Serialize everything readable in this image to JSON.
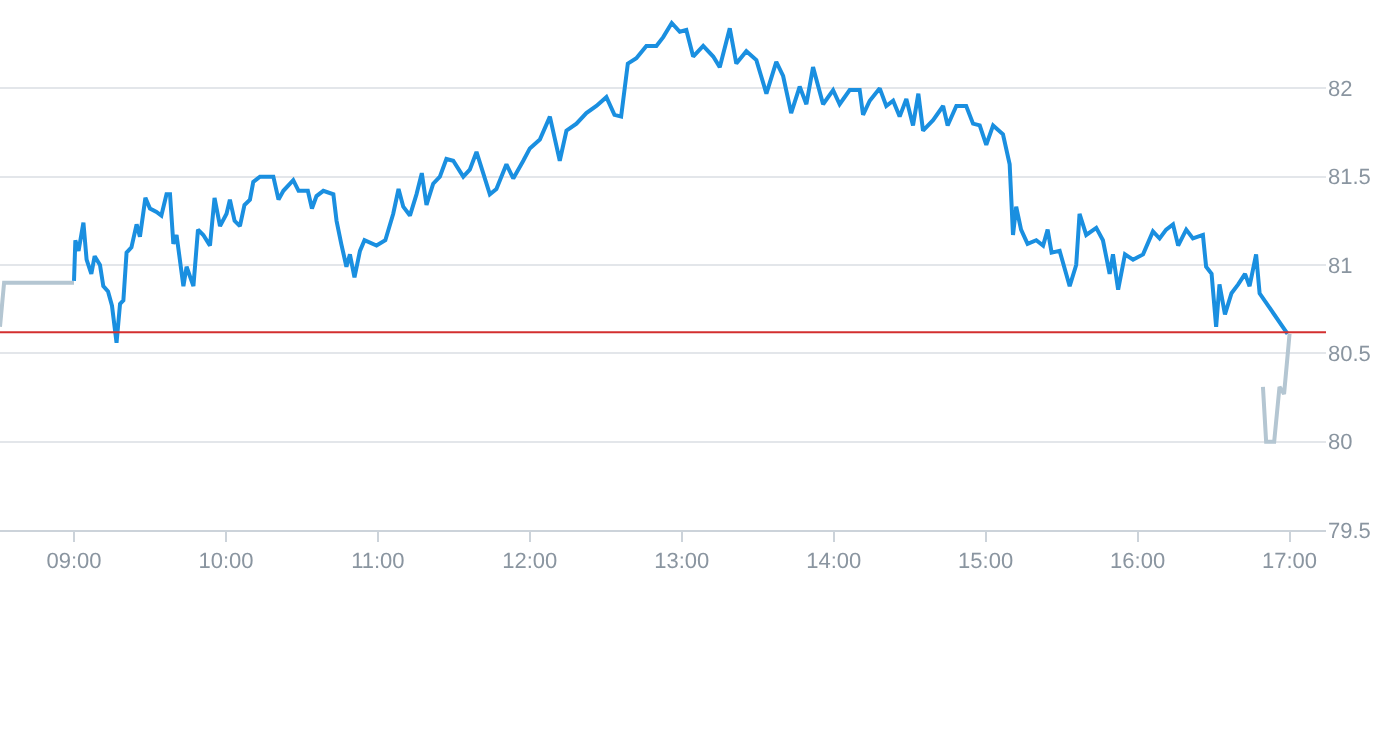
{
  "chart_data": {
    "type": "line",
    "xlim": [
      8.513,
      17.24
    ],
    "ylim": [
      79.5,
      82.5
    ],
    "xticks": [
      {
        "value": 9,
        "label": "09:00"
      },
      {
        "value": 10,
        "label": "10:00"
      },
      {
        "value": 11,
        "label": "11:00"
      },
      {
        "value": 12,
        "label": "12:00"
      },
      {
        "value": 13,
        "label": "13:00"
      },
      {
        "value": 14,
        "label": "14:00"
      },
      {
        "value": 15,
        "label": "15:00"
      },
      {
        "value": 16,
        "label": "16:00"
      },
      {
        "value": 17,
        "label": "17:00"
      }
    ],
    "yticks": [
      79.5,
      80,
      80.5,
      81,
      81.5,
      82
    ],
    "grid": "y",
    "marker": "none",
    "line_style": "solid",
    "ref_lines": [
      {
        "axis": "y",
        "value": 80.62,
        "label": null,
        "color": "#d32f2f"
      }
    ],
    "series": [
      {
        "color": "#b4c6d2",
        "x": [
          8.513,
          8.54,
          9.0
        ],
        "values": [
          80.65,
          80.9,
          80.9
        ]
      },
      {
        "color": "#1a8fe0",
        "x": [
          9.0,
          9.009,
          9.03,
          9.062,
          9.083,
          9.114,
          9.136,
          9.171,
          9.193,
          9.224,
          9.25,
          9.28,
          9.303,
          9.325,
          9.346,
          9.378,
          9.412,
          9.434,
          9.47,
          9.5,
          9.543,
          9.575,
          9.609,
          9.632,
          9.654,
          9.675,
          9.72,
          9.741,
          9.786,
          9.816,
          9.851,
          9.895,
          9.925,
          9.961,
          10.004,
          10.026,
          10.057,
          10.092,
          10.122,
          10.158,
          10.18,
          10.224,
          10.267,
          10.312,
          10.346,
          10.378,
          10.443,
          10.478,
          10.539,
          10.566,
          10.596,
          10.641,
          10.707,
          10.728,
          10.759,
          10.793,
          10.816,
          10.846,
          10.882,
          10.912,
          10.991,
          11.049,
          11.101,
          11.136,
          11.167,
          11.211,
          11.254,
          11.289,
          11.32,
          11.364,
          11.408,
          11.451,
          11.496,
          11.562,
          11.605,
          11.649,
          11.737,
          11.78,
          11.846,
          11.891,
          11.957,
          12.0,
          12.066,
          12.132,
          12.197,
          12.241,
          12.307,
          12.372,
          12.438,
          12.504,
          12.557,
          12.601,
          12.645,
          12.701,
          12.767,
          12.833,
          12.878,
          12.934,
          12.987,
          13.03,
          13.075,
          13.141,
          13.207,
          13.25,
          13.316,
          13.359,
          13.425,
          13.491,
          13.557,
          13.622,
          13.667,
          13.72,
          13.776,
          13.82,
          13.864,
          13.93,
          13.996,
          14.039,
          14.105,
          14.171,
          14.193,
          14.237,
          14.303,
          14.346,
          14.391,
          14.434,
          14.478,
          14.522,
          14.557,
          14.588,
          14.654,
          14.72,
          14.75,
          14.807,
          14.872,
          14.917,
          14.961,
          15.004,
          15.049,
          15.114,
          15.158,
          15.18,
          15.201,
          15.233,
          15.276,
          15.333,
          15.378,
          15.408,
          15.434,
          15.487,
          15.553,
          15.596,
          15.618,
          15.662,
          15.728,
          15.772,
          15.816,
          15.838,
          15.872,
          15.917,
          15.97,
          16.036,
          16.101,
          16.145,
          16.188,
          16.233,
          16.267,
          16.32,
          16.364,
          16.43,
          16.451,
          16.487,
          16.517,
          16.539,
          16.575,
          16.618,
          16.662,
          16.707,
          16.737,
          16.78,
          16.803,
          16.987
        ],
        "values": [
          80.91,
          81.14,
          81.08,
          81.24,
          81.03,
          80.95,
          81.05,
          81.0,
          80.88,
          80.85,
          80.77,
          80.56,
          80.78,
          80.8,
          81.07,
          81.1,
          81.23,
          81.16,
          81.38,
          81.32,
          81.3,
          81.28,
          81.4,
          81.4,
          81.12,
          81.17,
          80.88,
          80.99,
          80.88,
          81.2,
          81.17,
          81.11,
          81.38,
          81.22,
          81.29,
          81.37,
          81.25,
          81.22,
          81.34,
          81.37,
          81.47,
          81.5,
          81.5,
          81.5,
          81.37,
          81.42,
          81.48,
          81.42,
          81.42,
          81.32,
          81.39,
          81.42,
          81.4,
          81.25,
          81.12,
          80.99,
          81.06,
          80.93,
          81.08,
          81.14,
          81.11,
          81.14,
          81.29,
          81.43,
          81.33,
          81.28,
          81.4,
          81.52,
          81.34,
          81.46,
          81.5,
          81.6,
          81.59,
          81.5,
          81.54,
          81.64,
          81.4,
          81.43,
          81.57,
          81.49,
          81.59,
          81.66,
          81.71,
          81.84,
          81.59,
          81.76,
          81.8,
          81.86,
          81.9,
          81.95,
          81.85,
          81.84,
          82.14,
          82.17,
          82.24,
          82.24,
          82.29,
          82.37,
          82.32,
          82.33,
          82.18,
          82.24,
          82.18,
          82.12,
          82.34,
          82.14,
          82.21,
          82.16,
          81.97,
          82.15,
          82.07,
          81.86,
          82.01,
          81.91,
          82.12,
          81.91,
          81.99,
          81.91,
          81.99,
          81.99,
          81.85,
          81.93,
          82.0,
          81.9,
          81.93,
          81.84,
          81.94,
          81.79,
          81.97,
          81.76,
          81.82,
          81.9,
          81.79,
          81.9,
          81.9,
          81.8,
          81.79,
          81.68,
          81.79,
          81.74,
          81.57,
          81.17,
          81.33,
          81.2,
          81.12,
          81.14,
          81.11,
          81.2,
          81.07,
          81.08,
          80.88,
          81.0,
          81.29,
          81.17,
          81.21,
          81.14,
          80.95,
          81.06,
          80.86,
          81.06,
          81.03,
          81.06,
          81.19,
          81.15,
          81.2,
          81.23,
          81.11,
          81.2,
          81.15,
          81.17,
          80.99,
          80.95,
          80.65,
          80.89,
          80.72,
          80.84,
          80.89,
          80.95,
          80.88,
          81.06,
          80.84,
          80.61
        ]
      },
      {
        "color": "#b4c6d2",
        "x": [
          16.825,
          16.846,
          16.899,
          16.934,
          16.964,
          16.996,
          17.0
        ],
        "values": [
          80.31,
          80.0,
          80.0,
          80.31,
          80.27,
          80.57,
          80.61
        ]
      }
    ]
  }
}
